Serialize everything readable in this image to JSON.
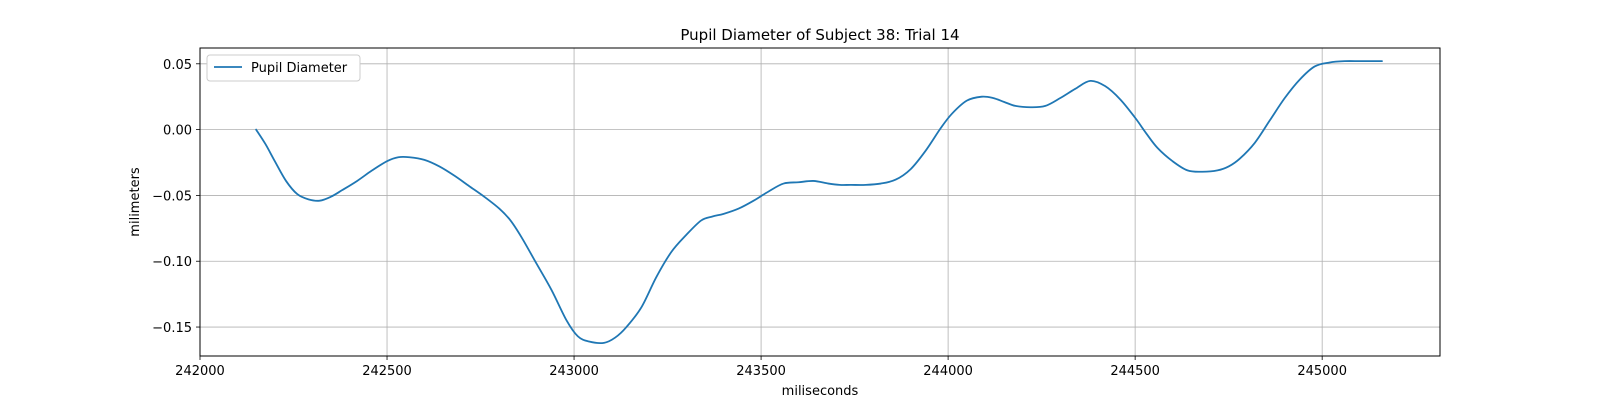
{
  "chart_data": {
    "type": "line",
    "title": "Pupil Diameter of Subject 38: Trial 14",
    "xlabel": "miliseconds",
    "ylabel": "milimeters",
    "xlim": [
      242000,
      245315
    ],
    "ylim": [
      -0.172,
      0.062
    ],
    "xticks": [
      242000,
      242500,
      243000,
      243500,
      244000,
      244500,
      245000
    ],
    "xtick_labels": [
      "242000",
      "242500",
      "243000",
      "243500",
      "244000",
      "244500",
      "245000"
    ],
    "yticks": [
      0.05,
      0.0,
      -0.05,
      -0.1,
      -0.15
    ],
    "ytick_labels": [
      "0.05",
      "0.00",
      "−0.05",
      "−0.10",
      "−0.15"
    ],
    "grid": true,
    "legend_position": "upper-left",
    "series": [
      {
        "name": "Pupil Diameter",
        "color": "#1f77b4",
        "x": [
          242150,
          242175,
          242200,
          242230,
          242260,
          242290,
          242320,
          242350,
          242380,
          242420,
          242460,
          242500,
          242530,
          242560,
          242600,
          242640,
          242680,
          242720,
          242760,
          242800,
          242830,
          242860,
          242900,
          242940,
          242980,
          243010,
          243040,
          243080,
          243110,
          243140,
          243180,
          243220,
          243260,
          243300,
          243340,
          243370,
          243400,
          243440,
          243480,
          243520,
          243560,
          243600,
          243640,
          243680,
          243710,
          243740,
          243780,
          243820,
          243860,
          243900,
          243940,
          243980,
          244010,
          244050,
          244090,
          244120,
          244150,
          244180,
          244220,
          244260,
          244300,
          244340,
          244380,
          244420,
          244460,
          244500,
          244530,
          244560,
          244600,
          244640,
          244680,
          244720,
          244750,
          244780,
          244820,
          244860,
          244900,
          244940,
          244980,
          245020,
          245060,
          245100,
          245130,
          245160
        ],
        "y": [
          0.0,
          -0.011,
          -0.024,
          -0.039,
          -0.049,
          -0.053,
          -0.054,
          -0.051,
          -0.046,
          -0.039,
          -0.031,
          -0.024,
          -0.021,
          -0.021,
          -0.023,
          -0.028,
          -0.035,
          -0.043,
          -0.051,
          -0.06,
          -0.069,
          -0.082,
          -0.102,
          -0.122,
          -0.145,
          -0.157,
          -0.161,
          -0.162,
          -0.158,
          -0.15,
          -0.135,
          -0.112,
          -0.093,
          -0.08,
          -0.069,
          -0.066,
          -0.064,
          -0.06,
          -0.054,
          -0.047,
          -0.041,
          -0.04,
          -0.039,
          -0.041,
          -0.042,
          -0.042,
          -0.042,
          -0.041,
          -0.038,
          -0.03,
          -0.016,
          0.001,
          0.012,
          0.022,
          0.025,
          0.024,
          0.021,
          0.018,
          0.017,
          0.018,
          0.024,
          0.031,
          0.037,
          0.033,
          0.023,
          0.009,
          -0.003,
          -0.014,
          -0.024,
          -0.031,
          -0.032,
          -0.031,
          -0.028,
          -0.022,
          -0.01,
          0.007,
          0.024,
          0.038,
          0.048,
          0.051,
          0.052,
          0.052,
          0.052,
          0.052
        ]
      }
    ]
  }
}
